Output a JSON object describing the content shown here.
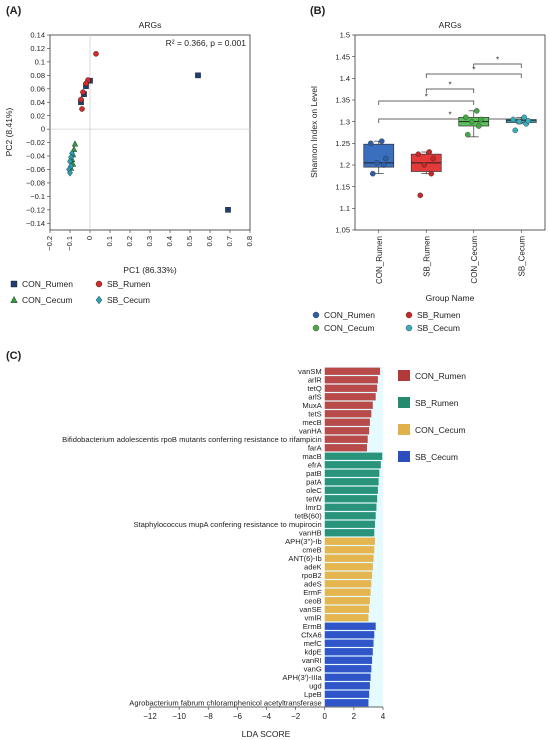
{
  "panels": {
    "a": "(A)",
    "b": "(B)",
    "c": "(C)"
  },
  "chart_data": [
    {
      "type": "scatter",
      "title": "ARGs",
      "annotation": "R² = 0.366, p = 0.001",
      "xlabel": "PC1 (86.33%)",
      "ylabel": "PC2 (8.41%)",
      "xlim": [
        -0.2,
        0.8
      ],
      "ylim": [
        -0.15,
        0.14
      ],
      "xticks": [
        "−0.2",
        "−0.1",
        "0",
        "0.1",
        "0.2",
        "0.3",
        "0.4",
        "0.5",
        "0.6",
        "0.7",
        "0.8"
      ],
      "yticks": [
        "0.14",
        "0.12",
        "0.1",
        "0.08",
        "0.06",
        "0.04",
        "0.02",
        "0",
        "−0.02",
        "−0.04",
        "−0.06",
        "−0.08",
        "−0.1",
        "−0.12",
        "−0.14"
      ],
      "grid": false,
      "legend": "bottom",
      "series": [
        {
          "name": "CON_Rumen",
          "marker": "square",
          "color": "#1f3f73",
          "points": [
            [
              0.54,
              0.08
            ],
            [
              0.69,
              -0.12
            ],
            [
              0.0,
              0.072
            ],
            [
              -0.02,
              0.064
            ],
            [
              -0.03,
              0.052
            ],
            [
              -0.045,
              0.04
            ]
          ]
        },
        {
          "name": "SB_Rumen",
          "marker": "circle",
          "color": "#d42a2a",
          "points": [
            [
              0.03,
              0.112
            ],
            [
              -0.01,
              0.073
            ],
            [
              -0.02,
              0.068
            ],
            [
              -0.035,
              0.055
            ],
            [
              -0.045,
              0.044
            ],
            [
              -0.04,
              0.03
            ]
          ]
        },
        {
          "name": "CON_Cecum",
          "marker": "triangle",
          "color": "#2f9b3e",
          "points": [
            [
              -0.075,
              -0.022
            ],
            [
              -0.08,
              -0.03
            ],
            [
              -0.085,
              -0.038
            ],
            [
              -0.09,
              -0.045
            ],
            [
              -0.085,
              -0.052
            ],
            [
              -0.095,
              -0.058
            ]
          ]
        },
        {
          "name": "SB_Cecum",
          "marker": "diamond",
          "color": "#2aa0b8",
          "points": [
            [
              -0.09,
              -0.036
            ],
            [
              -0.095,
              -0.042
            ],
            [
              -0.1,
              -0.048
            ],
            [
              -0.095,
              -0.055
            ],
            [
              -0.105,
              -0.06
            ],
            [
              -0.1,
              -0.065
            ]
          ]
        }
      ]
    },
    {
      "type": "box",
      "title": "ARGs",
      "xlabel": "Group Name",
      "ylabel": "Shannon Index on Level",
      "ylim": [
        1.05,
        1.5
      ],
      "yticks": [
        "1.5",
        "1.45",
        "1.4",
        "1.35",
        "1.3",
        "1.25",
        "1.2",
        "1.15",
        "1.1",
        "1.05"
      ],
      "legend": "bottom",
      "significance_label": "*",
      "significance_pairs": [
        [
          2,
          3
        ],
        [
          1,
          3
        ],
        [
          1,
          2
        ],
        [
          0,
          2
        ],
        [
          0,
          3
        ]
      ],
      "groups": [
        {
          "name": "CON_Rumen",
          "color": "#3a6fc0",
          "point_color": "#2d5ea8",
          "min": 1.18,
          "q1": 1.195,
          "median": 1.205,
          "q3": 1.248,
          "max": 1.255,
          "points": [
            1.18,
            1.2,
            1.205,
            1.215,
            1.25,
            1.255
          ]
        },
        {
          "name": "SB_Rumen",
          "color": "#e53a3a",
          "point_color": "#c72727",
          "min": 1.18,
          "q1": 1.185,
          "median": 1.205,
          "q3": 1.225,
          "max": 1.23,
          "points": [
            1.13,
            1.18,
            1.2,
            1.215,
            1.225,
            1.23
          ]
        },
        {
          "name": "CON_Cecum",
          "color": "#5cc15c",
          "point_color": "#46a846",
          "min": 1.265,
          "q1": 1.29,
          "median": 1.3,
          "q3": 1.31,
          "max": 1.325,
          "points": [
            1.27,
            1.29,
            1.3,
            1.305,
            1.31,
            1.325
          ]
        },
        {
          "name": "SB_Cecum",
          "color": "#49c6d6",
          "point_color": "#36aebd",
          "min": 1.295,
          "q1": 1.298,
          "median": 1.302,
          "q3": 1.305,
          "max": 1.31,
          "points": [
            1.28,
            1.295,
            1.3,
            1.302,
            1.305,
            1.31
          ]
        }
      ]
    },
    {
      "type": "bar",
      "orientation": "horizontal",
      "xlabel": "LDA SCORE",
      "xlim": [
        -12,
        4
      ],
      "xticks": [
        "−12",
        "−10",
        "−8",
        "−6",
        "−4",
        "−2",
        "0",
        "2",
        "4"
      ],
      "legend": "right",
      "series": [
        {
          "name": "CON_Rumen",
          "color": "#b03a3a",
          "bar_color": "#b84a4a",
          "categories": [
            "vanSM",
            "arlR",
            "tetQ",
            "arlS",
            "MuxA",
            "tetS",
            "mecB",
            "vanHA",
            "Bifidobacterium adolescentis rpoB mutants conferring resistance to rifampicin",
            "farA"
          ],
          "values": [
            3.8,
            3.65,
            3.6,
            3.5,
            3.3,
            3.2,
            3.1,
            3.05,
            2.95,
            2.9
          ]
        },
        {
          "name": "SB_Rumen",
          "color": "#268a6e",
          "bar_color": "#2a947a",
          "categories": [
            "macB",
            "efrA",
            "patB",
            "patA",
            "oleC",
            "tetW",
            "lmrD",
            "tetB(60)",
            "Staphylococcus mupA confering resistance to mupirocin",
            "vanHB"
          ],
          "values": [
            3.95,
            3.85,
            3.75,
            3.7,
            3.65,
            3.6,
            3.55,
            3.5,
            3.45,
            3.4
          ]
        },
        {
          "name": "CON_Cecum",
          "color": "#e0b04a",
          "bar_color": "#e5b550",
          "categories": [
            "APH(3'')-Ib",
            "cmeB",
            "ANT(6)-Ib",
            "adeK",
            "rpoB2",
            "adeS",
            "ErmF",
            "ceoB",
            "vanSE",
            "vmlR"
          ],
          "values": [
            3.45,
            3.4,
            3.35,
            3.3,
            3.25,
            3.2,
            3.15,
            3.1,
            3.05,
            3.0
          ]
        },
        {
          "name": "SB_Cecum",
          "color": "#2c4fbf",
          "bar_color": "#2f55c8",
          "categories": [
            "ErmB",
            "CfxA6",
            "mefC",
            "kdpE",
            "vanRI",
            "vanG",
            "APH(3')-IIIa",
            "ugd",
            "LpeB",
            "Agrobacterium fabrum chloramphenicol acetyltransferase"
          ],
          "values": [
            3.5,
            3.4,
            3.35,
            3.3,
            3.25,
            3.2,
            3.15,
            3.1,
            3.05,
            3.0
          ]
        }
      ]
    }
  ]
}
